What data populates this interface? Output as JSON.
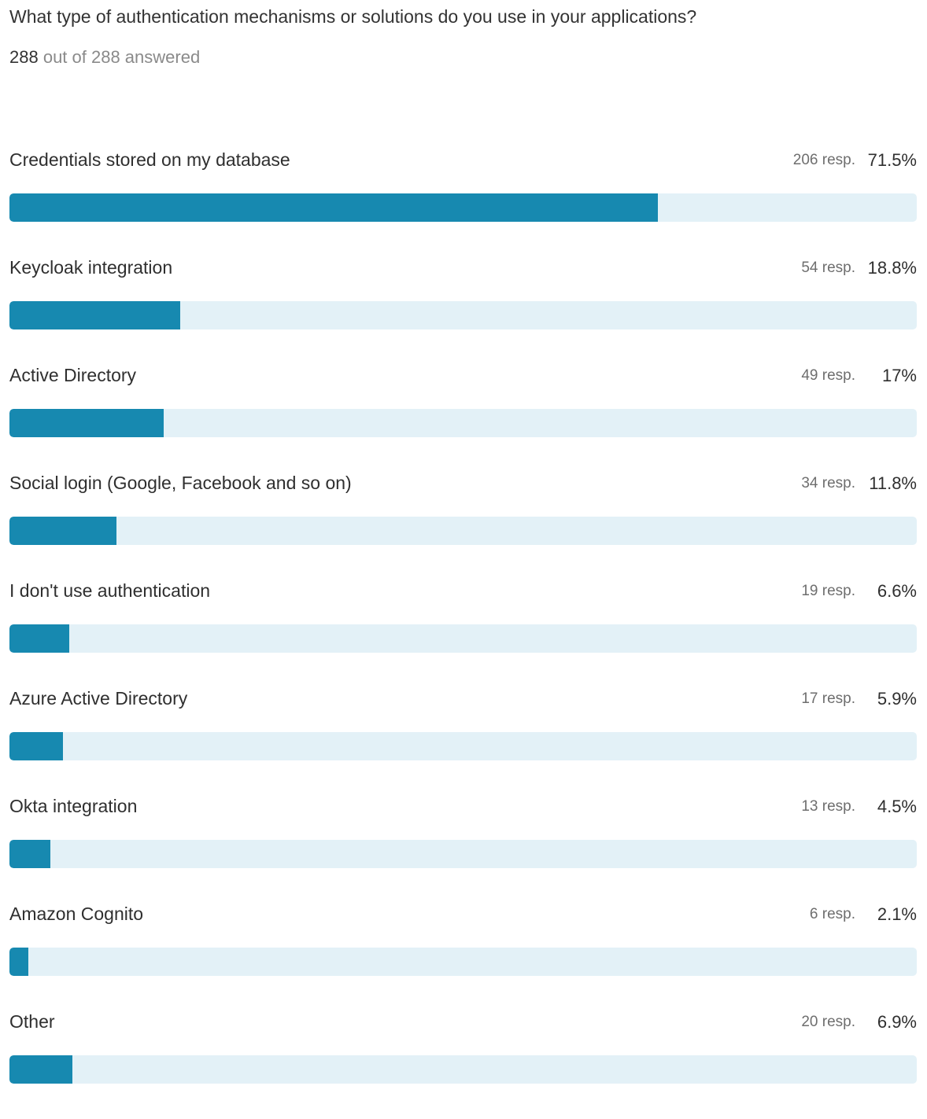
{
  "question": "What type of authentication mechanisms or solutions do you use in your applications?",
  "answered": {
    "count": "288",
    "text": " out of 288 answered"
  },
  "colors": {
    "bar_fill": "#1789b0",
    "bar_track": "#e3f1f7"
  },
  "chart_data": {
    "type": "bar",
    "orientation": "horizontal",
    "total": 288,
    "xlim": [
      0,
      100
    ],
    "categories": [
      "Credentials stored on my database",
      "Keycloak integration",
      "Active Directory",
      "Social login (Google, Facebook and so on)",
      "I don't use authentication",
      "Azure Active Directory",
      "Okta integration",
      "Amazon Cognito",
      "Other"
    ],
    "responses": [
      206,
      54,
      49,
      34,
      19,
      17,
      13,
      6,
      20
    ],
    "values": [
      71.5,
      18.8,
      17,
      11.8,
      6.6,
      5.9,
      4.5,
      2.1,
      6.9
    ],
    "count_labels": [
      "206 resp.",
      "54 resp.",
      "49 resp.",
      "34 resp.",
      "19 resp.",
      "17 resp.",
      "13 resp.",
      "6 resp.",
      "20 resp."
    ],
    "percent_labels": [
      "71.5%",
      "18.8%",
      "17%",
      "11.8%",
      "6.6%",
      "5.9%",
      "4.5%",
      "2.1%",
      "6.9%"
    ]
  }
}
